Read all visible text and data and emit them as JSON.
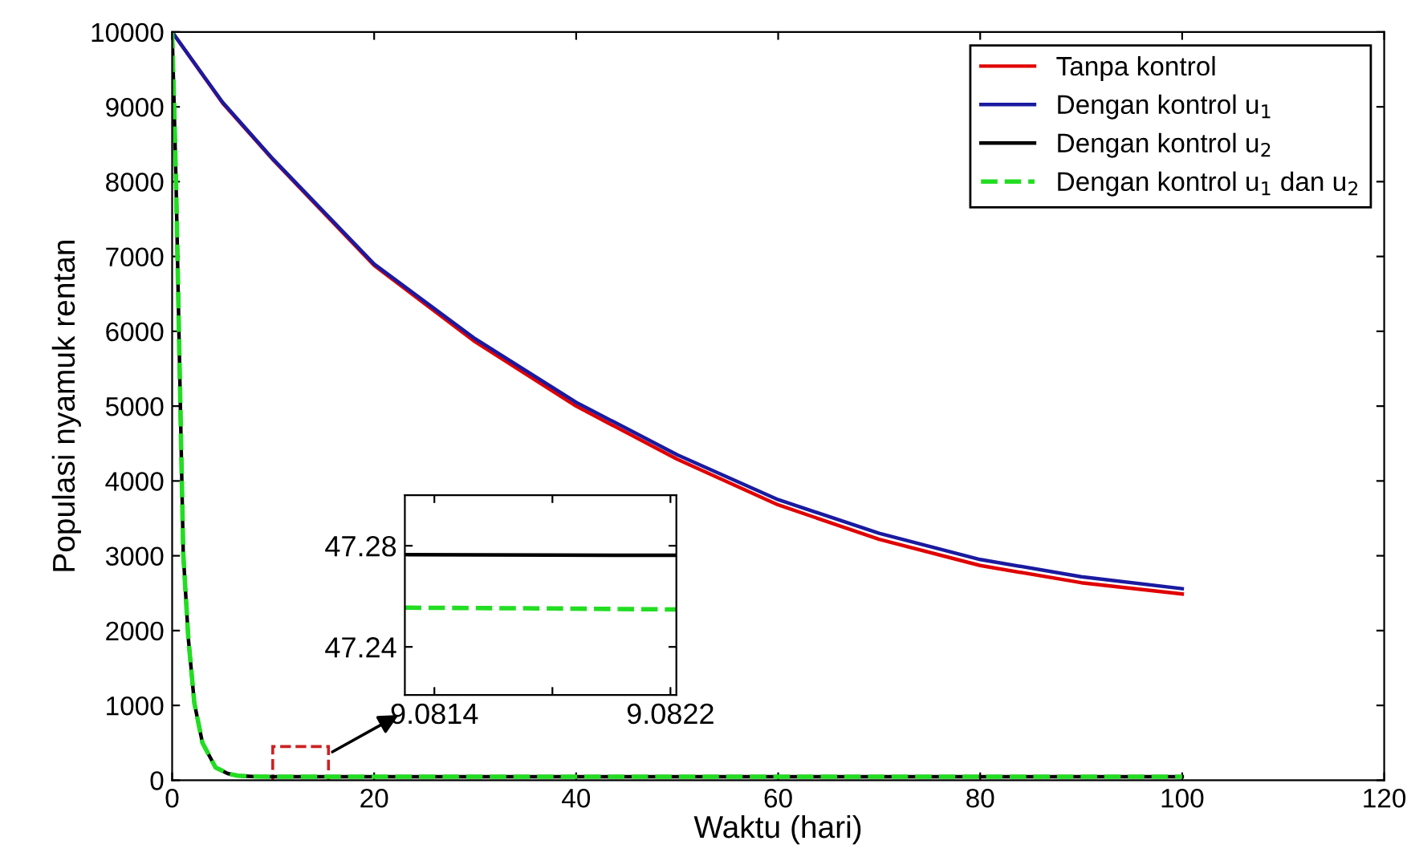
{
  "chart_data": [
    {
      "type": "line",
      "xlabel": "Waktu (hari)",
      "ylabel": "Populasi nyamuk rentan",
      "xlim": [
        0,
        120
      ],
      "ylim": [
        0,
        10000
      ],
      "xticks": [
        0,
        20,
        40,
        60,
        80,
        100,
        120
      ],
      "yticks": [
        0,
        1000,
        2000,
        3000,
        4000,
        5000,
        6000,
        7000,
        8000,
        9000,
        10000
      ],
      "legend": "top right",
      "grid": false,
      "series": [
        {
          "name": "Tanpa kontrol",
          "color": "#e00000",
          "line_style": "solid",
          "x": [
            0,
            5,
            10,
            20,
            30,
            40,
            50,
            60,
            70,
            80,
            90,
            100
          ],
          "values": [
            10000,
            9050,
            8290,
            6880,
            5860,
            5000,
            4290,
            3680,
            3220,
            2870,
            2640,
            2490
          ]
        },
        {
          "name": "Dengan kontrol u$_{1}$",
          "color": "#1a1aa0",
          "line_style": "solid",
          "x": [
            0,
            5,
            10,
            20,
            30,
            40,
            50,
            60,
            70,
            80,
            90,
            100
          ],
          "values": [
            10000,
            9060,
            8300,
            6900,
            5900,
            5050,
            4350,
            3750,
            3300,
            2950,
            2720,
            2560
          ]
        },
        {
          "name": "Dengan kontrol u$_{2}$",
          "color": "#000000",
          "line_style": "solid",
          "x": [
            0,
            0.2,
            0.4,
            0.7,
            1.1,
            1.6,
            2.2,
            3,
            4.3,
            5.5,
            6.5,
            8,
            10,
            20,
            40,
            60,
            80,
            100
          ],
          "values": [
            10000,
            9000,
            7900,
            5800,
            3030,
            1900,
            1030,
            500,
            170,
            90,
            60,
            50,
            47,
            47,
            47,
            47,
            47,
            47
          ]
        },
        {
          "name": "Dengan kontrol u$_{1}$ dan u$_{2}$",
          "color": "#22dd22",
          "line_style": "dashed",
          "x": [
            0,
            0.2,
            0.4,
            0.7,
            1.1,
            1.6,
            2.2,
            3,
            4.3,
            5.5,
            6.5,
            8,
            10,
            20,
            40,
            60,
            80,
            100
          ],
          "values": [
            10000,
            9000,
            7900,
            5800,
            3030,
            1900,
            1030,
            500,
            170,
            90,
            60,
            50,
            47,
            47,
            47,
            47,
            47,
            47
          ]
        }
      ]
    },
    {
      "type": "line",
      "xlim": [
        9.0813,
        9.08222
      ],
      "ylim": [
        47.221,
        47.3
      ],
      "xticks": [
        9.0814,
        {
          "value": 9.0818,
          "label": null
        },
        9.0822
      ],
      "yticks": [
        47.24,
        47.28
      ],
      "grid": false,
      "series": [
        {
          "color": "#000000",
          "line_style": "solid",
          "x": [
            9.0813,
            9.0818,
            9.08222
          ],
          "values": [
            47.2765,
            47.2763,
            47.2762
          ]
        },
        {
          "color": "#22dd22",
          "line_style": "dashed",
          "x": [
            9.0813,
            9.0818,
            9.08222
          ],
          "values": [
            47.2555,
            47.2552,
            47.2548
          ]
        }
      ]
    }
  ]
}
